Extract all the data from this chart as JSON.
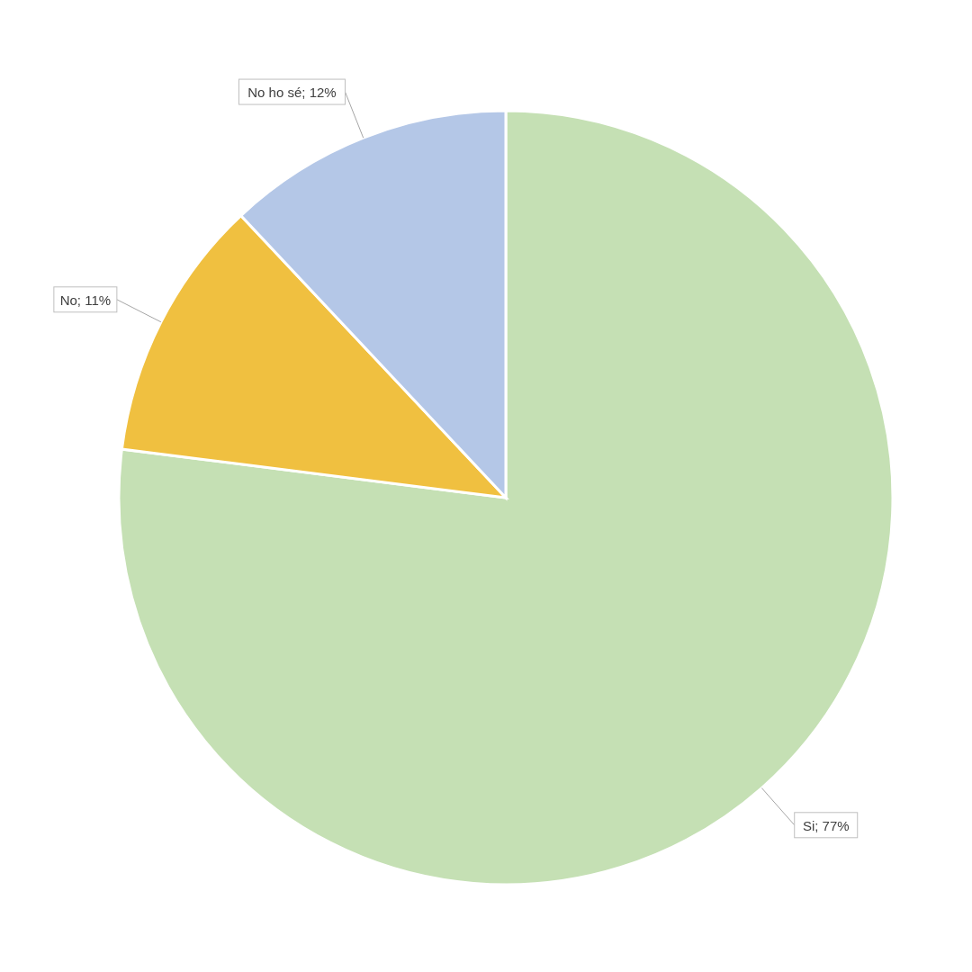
{
  "chart_data": {
    "type": "pie",
    "categories": [
      "Si",
      "No",
      "No ho sé"
    ],
    "values": [
      77,
      11,
      12
    ],
    "colors": [
      "#c5e0b4",
      "#f0c040",
      "#b4c7e7"
    ],
    "value_labels": [
      "; 77%",
      "; 11%",
      "; 12%"
    ]
  }
}
